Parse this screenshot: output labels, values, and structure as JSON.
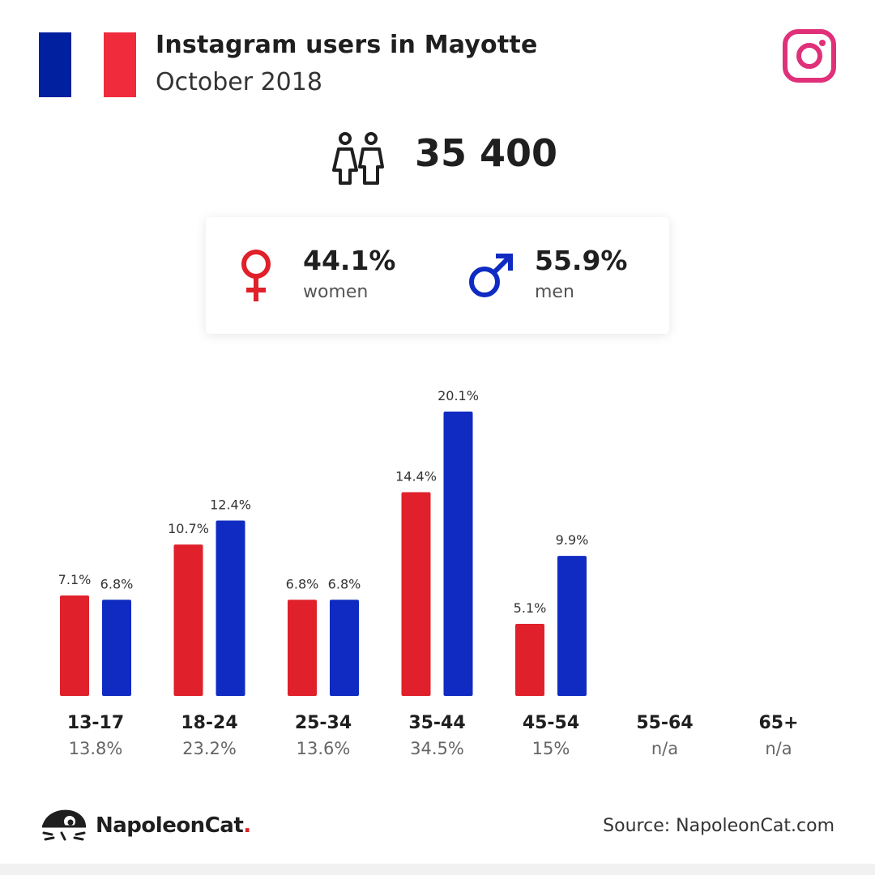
{
  "header": {
    "title": "Instagram users in Mayotte",
    "subtitle": "October 2018"
  },
  "flag": {
    "colors": [
      "#00209f",
      "#ffffff",
      "#ef2b3c"
    ]
  },
  "icons": {
    "flag": "france-flag-icon",
    "platform": "instagram-icon",
    "users": "users-icon",
    "female": "female-symbol-icon",
    "male": "male-symbol-icon",
    "brand": "napoleoncat-logo-icon"
  },
  "total_users": "35 400",
  "gender": {
    "women": {
      "value": "44.1%",
      "label": "women",
      "color": "#e0202a"
    },
    "men": {
      "value": "55.9%",
      "label": "men",
      "color": "#0f2bc2"
    }
  },
  "chart_data": {
    "type": "bar",
    "categories": [
      "13-17",
      "18-24",
      "25-34",
      "35-44",
      "45-54",
      "55-64",
      "65+"
    ],
    "category_totals": [
      "13.8%",
      "23.2%",
      "13.6%",
      "34.5%",
      "15%",
      "n/a",
      "n/a"
    ],
    "series": [
      {
        "name": "women",
        "color": "#e0202a",
        "values": [
          7.1,
          10.7,
          6.8,
          14.4,
          5.1,
          null,
          null
        ],
        "labels": [
          "7.1%",
          "10.7%",
          "6.8%",
          "14.4%",
          "5.1%",
          "",
          ""
        ]
      },
      {
        "name": "men",
        "color": "#0f2bc2",
        "values": [
          6.8,
          12.4,
          6.8,
          20.1,
          9.9,
          null,
          null
        ],
        "labels": [
          "6.8%",
          "12.4%",
          "6.8%",
          "20.1%",
          "9.9%",
          "",
          ""
        ]
      }
    ],
    "ylim": [
      0,
      20.1
    ],
    "grid": false,
    "legend": "none"
  },
  "footer": {
    "brand_name": "NapoleonCat",
    "brand_dot": ".",
    "source": "Source: NapoleonCat.com"
  }
}
